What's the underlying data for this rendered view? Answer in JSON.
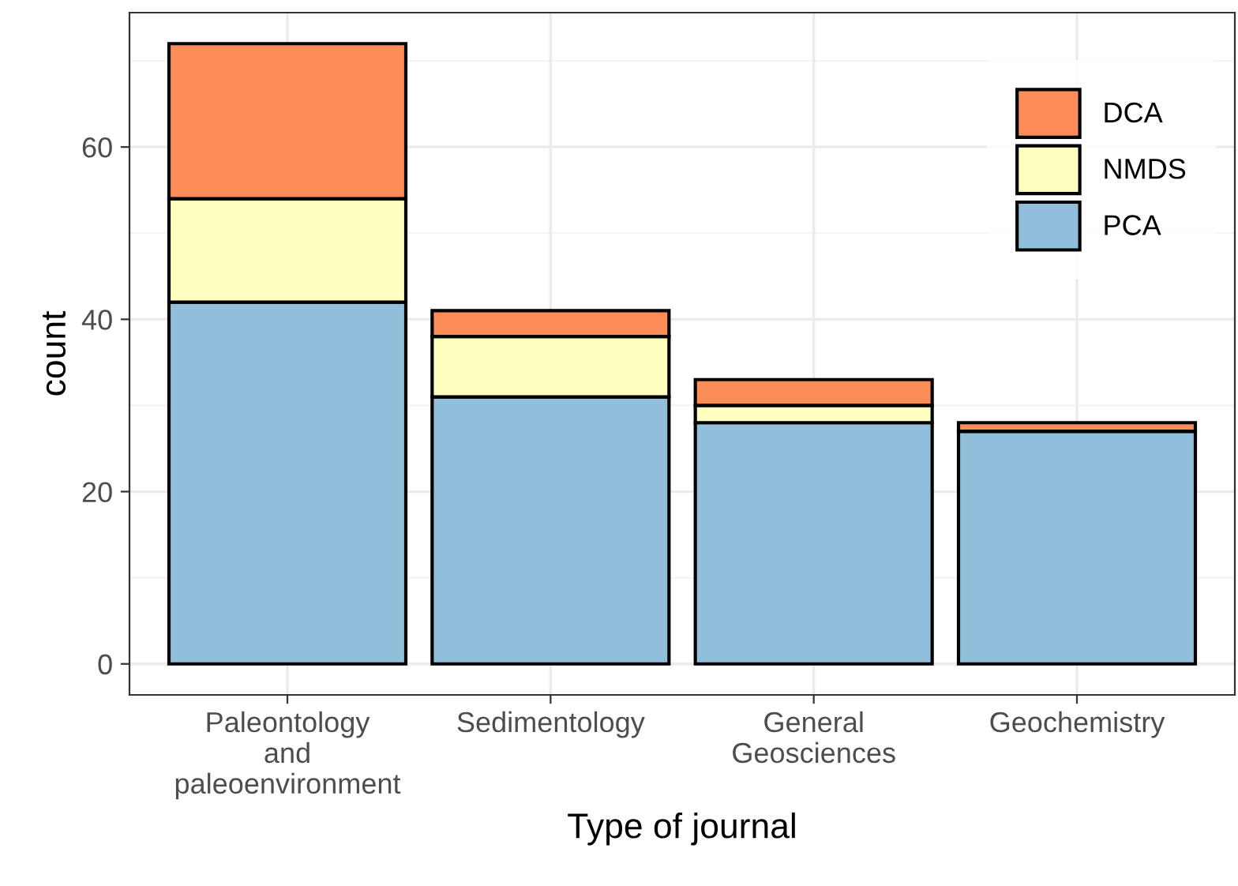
{
  "chart_data": {
    "type": "bar",
    "stacked": true,
    "xlabel": "Type of journal",
    "ylabel": "count",
    "categories": [
      "Paleontology\nand\npaleoenvironment",
      "Sedimentology",
      "General\nGeosciences",
      "Geochemistry"
    ],
    "series": [
      {
        "name": "PCA",
        "color": "#91bfdb",
        "values": [
          42,
          31,
          28,
          27
        ]
      },
      {
        "name": "NMDS",
        "color": "#ffffbf",
        "values": [
          12,
          7,
          2,
          0
        ]
      },
      {
        "name": "DCA",
        "color": "#fc8d59",
        "values": [
          18,
          3,
          3,
          1
        ]
      }
    ],
    "ylim": [
      -3.6,
      75.6
    ],
    "yticks": [
      0,
      20,
      40,
      60
    ],
    "grid": true,
    "legend": "top right"
  }
}
